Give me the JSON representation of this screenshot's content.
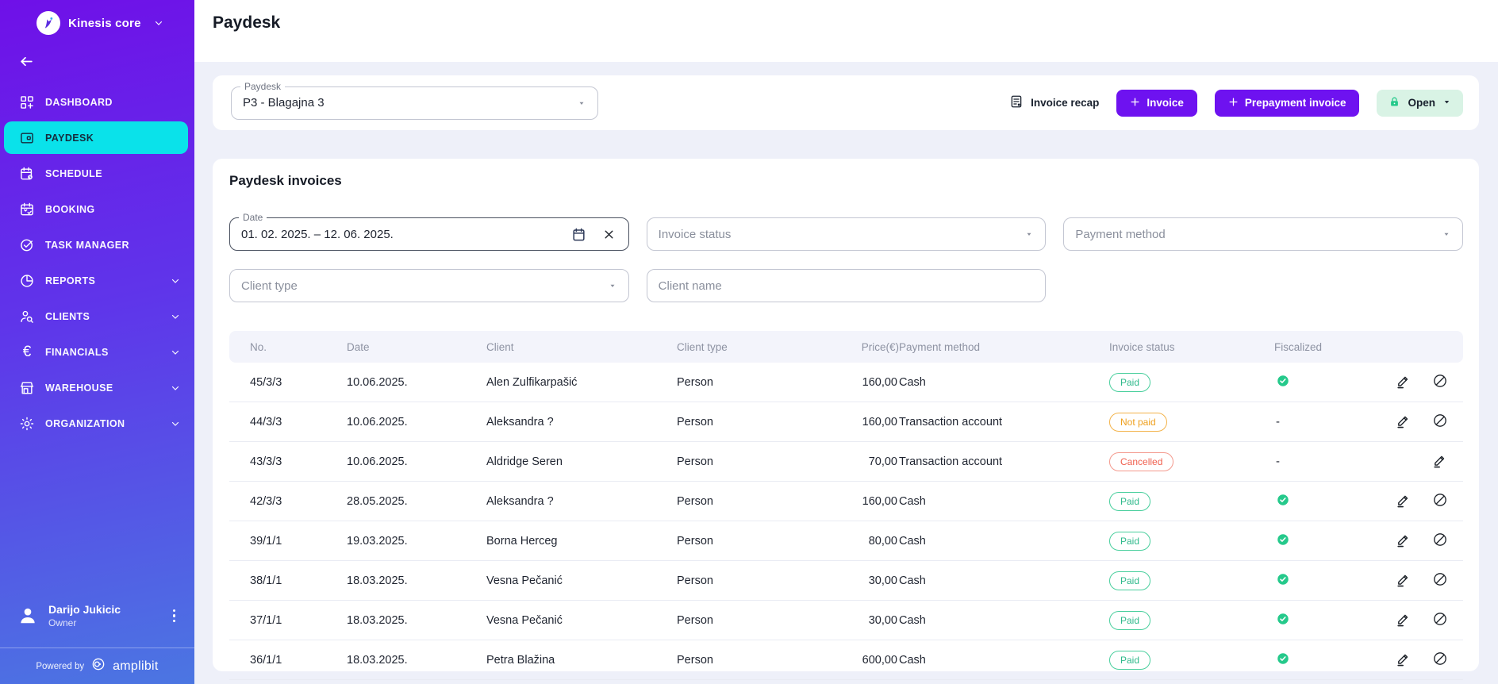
{
  "brand": {
    "name": "Kinesis core"
  },
  "sidebar": {
    "items": [
      {
        "label": "DASHBOARD",
        "icon": "dashboard",
        "active": false,
        "chevron": false
      },
      {
        "label": "PAYDESK",
        "icon": "paydesk",
        "active": true,
        "chevron": false
      },
      {
        "label": "SCHEDULE",
        "icon": "schedule",
        "active": false,
        "chevron": false
      },
      {
        "label": "BOOKING",
        "icon": "booking",
        "active": false,
        "chevron": false
      },
      {
        "label": "TASK MANAGER",
        "icon": "task-manager",
        "active": false,
        "chevron": false
      },
      {
        "label": "REPORTS",
        "icon": "reports",
        "active": false,
        "chevron": true
      },
      {
        "label": "CLIENTS",
        "icon": "clients",
        "active": false,
        "chevron": true
      },
      {
        "label": "FINANCIALS",
        "icon": "financials",
        "active": false,
        "chevron": true
      },
      {
        "label": "WAREHOUSE",
        "icon": "warehouse",
        "active": false,
        "chevron": true
      },
      {
        "label": "ORGANIZATION",
        "icon": "organization",
        "active": false,
        "chevron": true
      }
    ],
    "user": {
      "name": "Darijo Jukicic",
      "role": "Owner"
    },
    "powered_by": {
      "prefix": "Powered by",
      "brand": "amplibit"
    }
  },
  "header": {
    "title": "Paydesk"
  },
  "toolbar": {
    "paydesk_select": {
      "label": "Paydesk",
      "value": "P3 - Blagajna 3"
    },
    "invoice_recap_label": "Invoice recap",
    "invoice_button": "Invoice",
    "prepayment_button": "Prepayment invoice",
    "open_button": "Open"
  },
  "invoices_section": {
    "title": "Paydesk invoices",
    "filters": {
      "date": {
        "label": "Date",
        "value": "01. 02. 2025.  – 12. 06. 2025."
      },
      "invoice_status": {
        "placeholder": "Invoice status"
      },
      "payment_method": {
        "placeholder": "Payment method"
      },
      "client_type": {
        "placeholder": "Client type"
      },
      "client_name": {
        "placeholder": "Client name"
      }
    },
    "table": {
      "columns": [
        "No.",
        "Date",
        "Client",
        "Client type",
        "Price(€)",
        "Payment method",
        "Invoice status",
        "Fiscalized"
      ],
      "fiscalized_empty": "-",
      "rows": [
        {
          "no": "45/3/3",
          "date": "10.06.2025.",
          "client": "Alen Zulfikarpašić",
          "client_type": "Person",
          "price": "160,00",
          "payment_method": "Cash",
          "status": "Paid",
          "status_type": "paid",
          "fiscalized": "yes",
          "can_cancel": true
        },
        {
          "no": "44/3/3",
          "date": "10.06.2025.",
          "client": "Aleksandra ?",
          "client_type": "Person",
          "price": "160,00",
          "payment_method": "Transaction account",
          "status": "Not paid",
          "status_type": "not-paid",
          "fiscalized": "no",
          "can_cancel": true
        },
        {
          "no": "43/3/3",
          "date": "10.06.2025.",
          "client": "Aldridge Seren",
          "client_type": "Person",
          "price": "70,00",
          "payment_method": "Transaction account",
          "status": "Cancelled",
          "status_type": "cancelled",
          "fiscalized": "no",
          "can_cancel": false
        },
        {
          "no": "42/3/3",
          "date": "28.05.2025.",
          "client": "Aleksandra ?",
          "client_type": "Person",
          "price": "160,00",
          "payment_method": "Cash",
          "status": "Paid",
          "status_type": "paid",
          "fiscalized": "yes",
          "can_cancel": true
        },
        {
          "no": "39/1/1",
          "date": "19.03.2025.",
          "client": "Borna Herceg",
          "client_type": "Person",
          "price": "80,00",
          "payment_method": "Cash",
          "status": "Paid",
          "status_type": "paid",
          "fiscalized": "yes",
          "can_cancel": true
        },
        {
          "no": "38/1/1",
          "date": "18.03.2025.",
          "client": "Vesna Pečanić",
          "client_type": "Person",
          "price": "30,00",
          "payment_method": "Cash",
          "status": "Paid",
          "status_type": "paid",
          "fiscalized": "yes",
          "can_cancel": true
        },
        {
          "no": "37/1/1",
          "date": "18.03.2025.",
          "client": "Vesna Pečanić",
          "client_type": "Person",
          "price": "30,00",
          "payment_method": "Cash",
          "status": "Paid",
          "status_type": "paid",
          "fiscalized": "yes",
          "can_cancel": true
        },
        {
          "no": "36/1/1",
          "date": "18.03.2025.",
          "client": "Petra Blažina",
          "client_type": "Person",
          "price": "600,00",
          "payment_method": "Cash",
          "status": "Paid",
          "status_type": "paid",
          "fiscalized": "yes",
          "can_cancel": true
        }
      ]
    }
  },
  "colors": {
    "sidebar_top": "#6f10e8",
    "sidebar_bottom": "#4b76e2",
    "active_item": "#0ae2ea",
    "primary_button": "#6e12f0",
    "open_button_bg": "#d9f3e5",
    "paid": "#2db98a",
    "not_paid": "#efa01e",
    "cancelled": "#f0604f",
    "fiscalized_check": "#25c98b"
  }
}
